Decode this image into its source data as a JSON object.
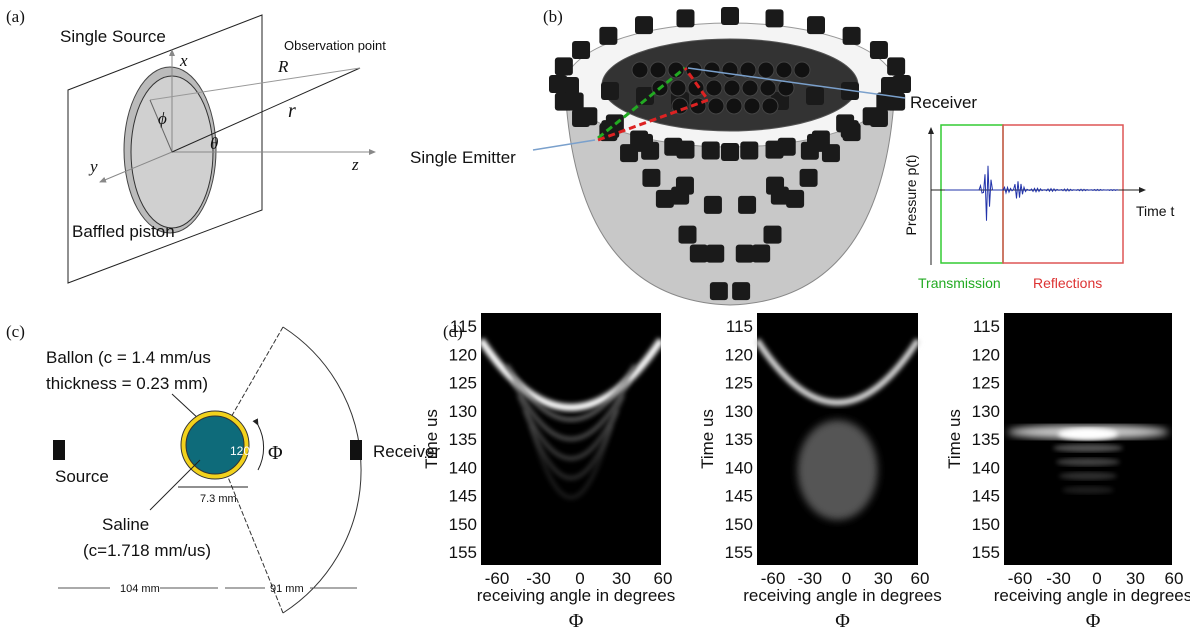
{
  "panel_a": {
    "label": "(a)",
    "single_source": "Single Source",
    "observation_point": "Observation point",
    "R": "R",
    "r": "r",
    "x": "x",
    "phi": "ϕ",
    "theta": "θ",
    "y": "y",
    "z": "z",
    "baffled_piston": "Baffled piston"
  },
  "panel_b": {
    "label": "(b)",
    "receiver": "Receiver",
    "single_emitter": "Single Emitter",
    "y_axis": "Pressure p(t)",
    "x_axis": "Time t",
    "transmission": "Transmission",
    "reflections": "Reflections"
  },
  "panel_c": {
    "label": "(c)",
    "ballon_line1": "Ballon (c = 1.4 mm/us",
    "ballon_line2": "thickness = 0.23 mm)",
    "source": "Source",
    "receiver": "Receiver",
    "angle": "120°",
    "phi": "Φ",
    "diameter": "7.3 mm",
    "saline_line1": "Saline",
    "saline_line2": "(c=1.718 mm/us)",
    "dist_source": "104 mm",
    "dist_receiver": "91 mm"
  },
  "panel_d": {
    "label": "(d)",
    "yticks": [
      115,
      120,
      125,
      130,
      135,
      140,
      145,
      150,
      155
    ],
    "xticks": [
      -60,
      -30,
      0,
      30,
      60
    ],
    "plots": [
      {
        "y_label": "Time us",
        "x_label": "receiving angle in degrees",
        "symbol": "Φ"
      },
      {
        "y_label": "Time us",
        "x_label": "receiving angle in degrees",
        "symbol": "Φ"
      },
      {
        "y_label": "Time us",
        "x_label": "receiving angle in degrees",
        "symbol": "Φ"
      }
    ]
  }
}
